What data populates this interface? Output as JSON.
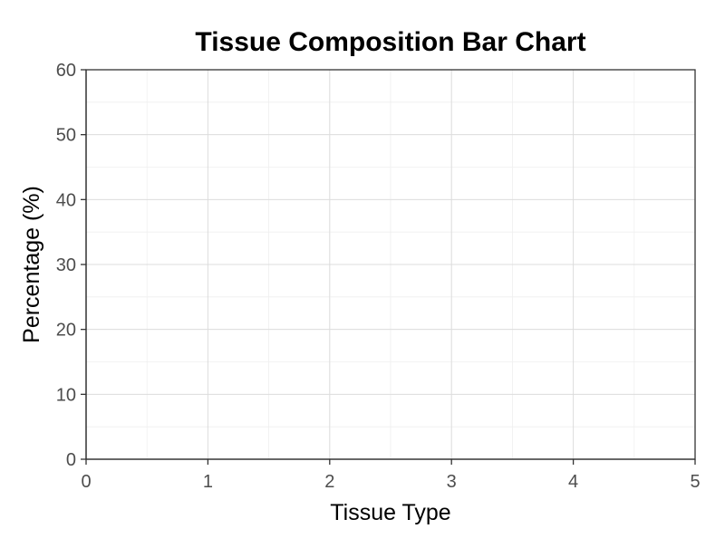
{
  "chart_data": {
    "type": "bar",
    "title": "Tissue Composition Bar Chart",
    "xlabel": "Tissue Type",
    "ylabel": "Percentage (%)",
    "xlim": [
      0,
      5
    ],
    "ylim": [
      0,
      60
    ],
    "x_ticks": [
      "0",
      "1",
      "2",
      "3",
      "4",
      "5"
    ],
    "y_ticks": [
      "0",
      "10",
      "20",
      "30",
      "40",
      "50",
      "60"
    ],
    "categories": [],
    "values": [],
    "grid": true,
    "legend": "none"
  }
}
